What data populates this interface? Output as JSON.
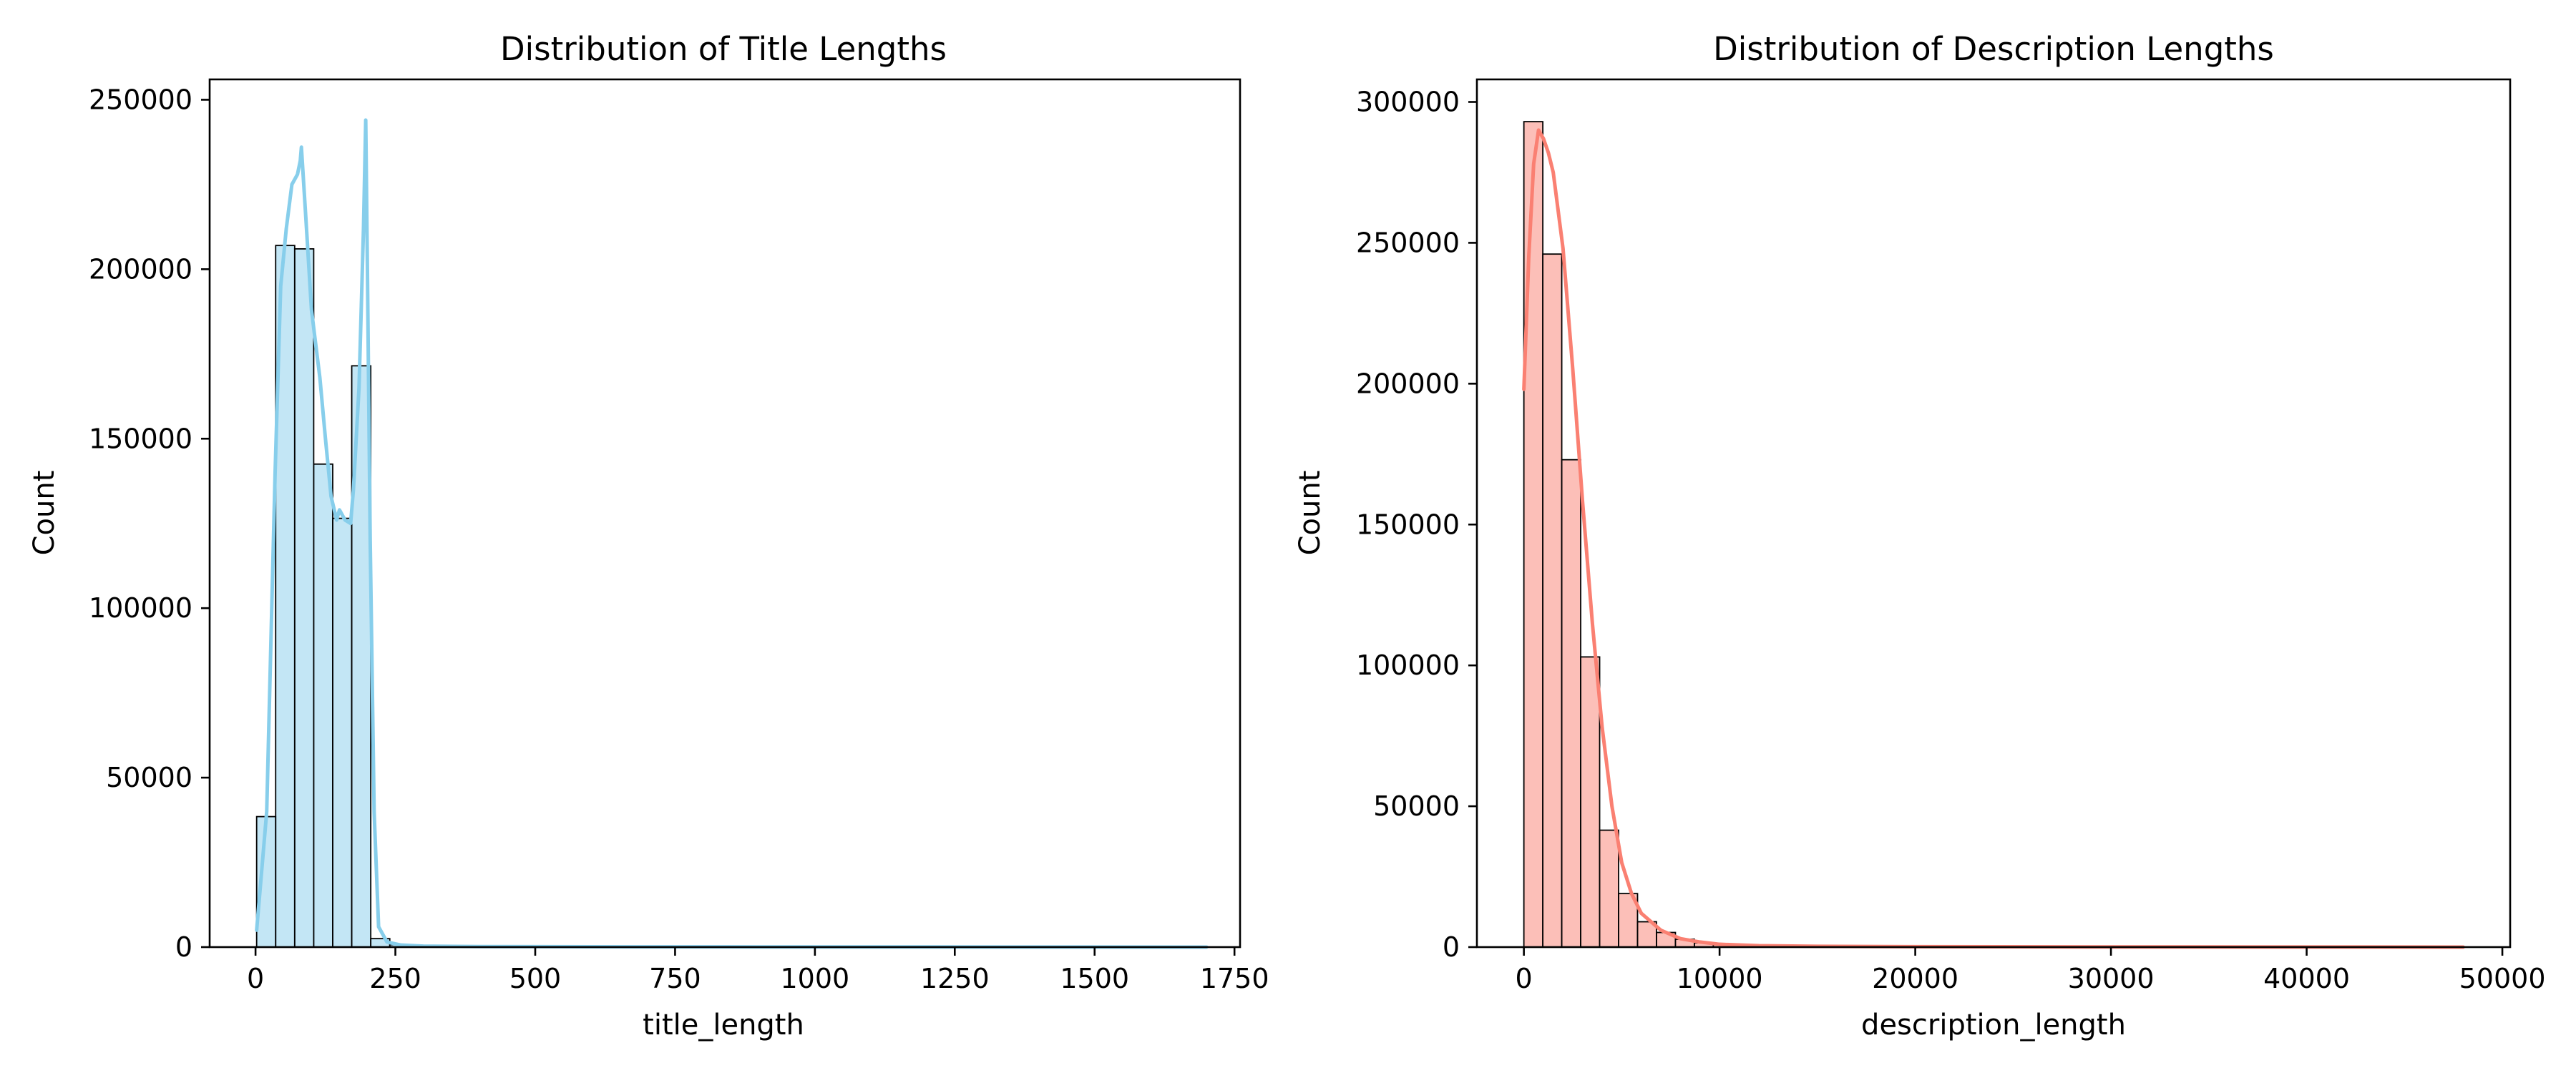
{
  "chart_data": [
    {
      "type": "bar",
      "title": "Distribution of Title Lengths",
      "xlabel": "title_length",
      "ylabel": "Count",
      "xlim": [
        -82,
        1760
      ],
      "ylim": [
        0,
        256000
      ],
      "xticks": [
        0,
        250,
        500,
        750,
        1000,
        1250,
        1500,
        1750
      ],
      "xtick_labels": [
        "0",
        "250",
        "500",
        "750",
        "1000",
        "1250",
        "1500",
        "1750"
      ],
      "yticks": [
        0,
        50000,
        100000,
        150000,
        200000,
        250000
      ],
      "ytick_labels": [
        "0",
        "50000",
        "100000",
        "150000",
        "200000",
        "250000"
      ],
      "grid": false,
      "bin_start": 2,
      "bin_width": 34,
      "values": [
        38500,
        207000,
        206000,
        142500,
        126500,
        171500,
        2500,
        700,
        300,
        200,
        120,
        80,
        60,
        50,
        40,
        30,
        25,
        20,
        15,
        12,
        10,
        8,
        6,
        5,
        4,
        3,
        3,
        2,
        2,
        2,
        2,
        1,
        1,
        1,
        1,
        1,
        1,
        1,
        1,
        1,
        1,
        1,
        1,
        1,
        1,
        1,
        1,
        1,
        1,
        1
      ],
      "kde": {
        "x": [
          2,
          20,
          35,
          45,
          55,
          65,
          75,
          80,
          82,
          90,
          100,
          115,
          125,
          135,
          145,
          150,
          160,
          170,
          175,
          185,
          193,
          197,
          200,
          205,
          212,
          220,
          235,
          260,
          300,
          400,
          600,
          900,
          1200,
          1500,
          1700
        ],
        "y": [
          5000,
          40000,
          140000,
          195000,
          212000,
          225000,
          228000,
          232000,
          236000,
          215000,
          188000,
          168000,
          150000,
          133000,
          126000,
          129000,
          126000,
          125000,
          135000,
          165000,
          212000,
          244000,
          200000,
          120000,
          40000,
          6000,
          1500,
          600,
          300,
          150,
          100,
          60,
          40,
          20,
          10
        ]
      },
      "colors": {
        "fill": "#87ceeb",
        "fill_opacity": 0.5,
        "line": "#87ceeb",
        "edge": "#000000"
      }
    },
    {
      "type": "bar",
      "title": "Distribution of Description Lengths",
      "xlabel": "description_length",
      "ylabel": "Count",
      "xlim": [
        -2400,
        50400
      ],
      "ylim": [
        0,
        308000
      ],
      "xticks": [
        0,
        10000,
        20000,
        30000,
        40000,
        50000
      ],
      "xtick_labels": [
        "0",
        "10000",
        "20000",
        "30000",
        "40000",
        "50000"
      ],
      "yticks": [
        0,
        50000,
        100000,
        150000,
        200000,
        250000,
        300000
      ],
      "ytick_labels": [
        "0",
        "50000",
        "100000",
        "150000",
        "200000",
        "250000",
        "300000"
      ],
      "grid": false,
      "bin_start": 0,
      "bin_width": 968,
      "values": [
        293000,
        246000,
        173000,
        103000,
        41500,
        19000,
        9000,
        5200,
        2800,
        1500,
        900,
        600,
        400,
        300,
        200,
        150,
        100,
        80,
        60,
        50,
        40,
        30,
        25,
        20,
        15,
        12,
        10,
        8,
        7,
        6,
        5,
        5,
        4,
        4,
        3,
        3,
        3,
        2,
        2,
        2,
        2,
        2,
        1,
        1,
        1,
        1,
        1,
        1,
        1,
        1
      ],
      "kde": {
        "x": [
          0,
          250,
          500,
          750,
          1000,
          1250,
          1500,
          2000,
          2500,
          3000,
          3500,
          4000,
          4500,
          5000,
          5500,
          6000,
          7000,
          8000,
          9000,
          10000,
          12000,
          15000,
          20000,
          30000,
          40000,
          48000
        ],
        "y": [
          198000,
          245000,
          278000,
          290000,
          287000,
          282000,
          275000,
          248000,
          205000,
          158000,
          115000,
          78000,
          50000,
          30000,
          19000,
          12000,
          6000,
          3000,
          1800,
          1000,
          500,
          300,
          150,
          60,
          30,
          10
        ]
      },
      "colors": {
        "fill": "#fa8072",
        "fill_opacity": 0.5,
        "line": "#fa8072",
        "edge": "#000000"
      }
    }
  ]
}
